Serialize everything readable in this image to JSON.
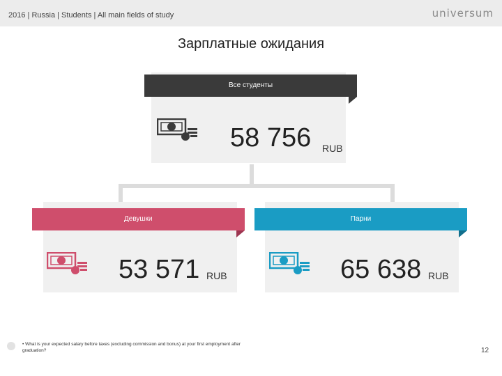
{
  "header": {
    "breadcrumb": "2016 | Russia | Students | All main fields of study",
    "logo": "universum"
  },
  "title": "Зарплатные ожидания",
  "groups": {
    "all": {
      "label": "Все студенты",
      "value": "58 756",
      "unit": "RUB",
      "color": "#3a3a3a"
    },
    "female": {
      "label": "Девушки",
      "value": "53 571",
      "unit": "RUB",
      "color": "#cf4e6c"
    },
    "male": {
      "label": "Парни",
      "value": "65 638",
      "unit": "RUB",
      "color": "#1a9cc4"
    }
  },
  "icons": {
    "money": "money-icon"
  },
  "footnote": "What is your expected salary before taxes (excluding commission and bonus) at your first employment after graduation?",
  "page_number": "12"
}
